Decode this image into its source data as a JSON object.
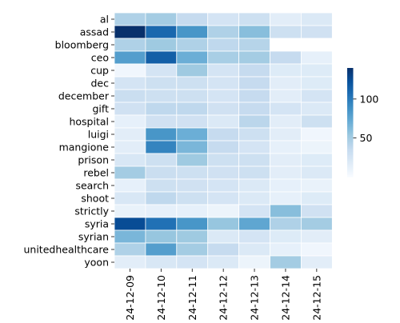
{
  "chart_data": {
    "type": "heatmap",
    "rows": [
      "al",
      "assad",
      "bloomberg",
      "ceo",
      "cup",
      "dec",
      "december",
      "gift",
      "hospital",
      "luigi",
      "mangione",
      "prison",
      "rebel",
      "search",
      "shoot",
      "strictly",
      "syria",
      "syrian",
      "unitedhealthcare",
      "yoon"
    ],
    "columns": [
      "2024-12-09",
      "2024-12-10",
      "2024-12-11",
      "2024-12-12",
      "2024-12-13",
      "2024-12-14",
      "2024-12-15"
    ],
    "values": [
      [
        45,
        50,
        35,
        25,
        30,
        15,
        20
      ],
      [
        140,
        110,
        85,
        45,
        60,
        30,
        28
      ],
      [
        45,
        52,
        45,
        38,
        42,
        null,
        null
      ],
      [
        80,
        115,
        70,
        48,
        50,
        35,
        12
      ],
      [
        5,
        25,
        52,
        25,
        35,
        18,
        18
      ],
      [
        25,
        30,
        30,
        25,
        35,
        15,
        18
      ],
      [
        32,
        30,
        30,
        25,
        35,
        15,
        25
      ],
      [
        28,
        38,
        38,
        28,
        35,
        25,
        20
      ],
      [
        12,
        28,
        28,
        20,
        40,
        15,
        30
      ],
      [
        15,
        85,
        70,
        35,
        30,
        15,
        5
      ],
      [
        15,
        95,
        65,
        35,
        25,
        12,
        8
      ],
      [
        22,
        30,
        52,
        30,
        30,
        15,
        18
      ],
      [
        50,
        32,
        30,
        28,
        30,
        15,
        20
      ],
      [
        12,
        30,
        28,
        25,
        20,
        12,
        10
      ],
      [
        22,
        38,
        30,
        25,
        20,
        12,
        18
      ],
      [
        10,
        12,
        12,
        8,
        25,
        60,
        28
      ],
      [
        125,
        105,
        85,
        55,
        75,
        45,
        50
      ],
      [
        65,
        55,
        52,
        20,
        25,
        18,
        15
      ],
      [
        45,
        80,
        50,
        35,
        20,
        12,
        5
      ],
      [
        15,
        22,
        25,
        20,
        8,
        50,
        15
      ]
    ],
    "colorbar": {
      "ticks": [
        50,
        100
      ],
      "min": 0,
      "max": 140
    },
    "colormap": "Blues",
    "colors": {
      "low": "#f7fbff",
      "high": "#08306b"
    },
    "title": "",
    "xlabel": "",
    "ylabel": ""
  }
}
